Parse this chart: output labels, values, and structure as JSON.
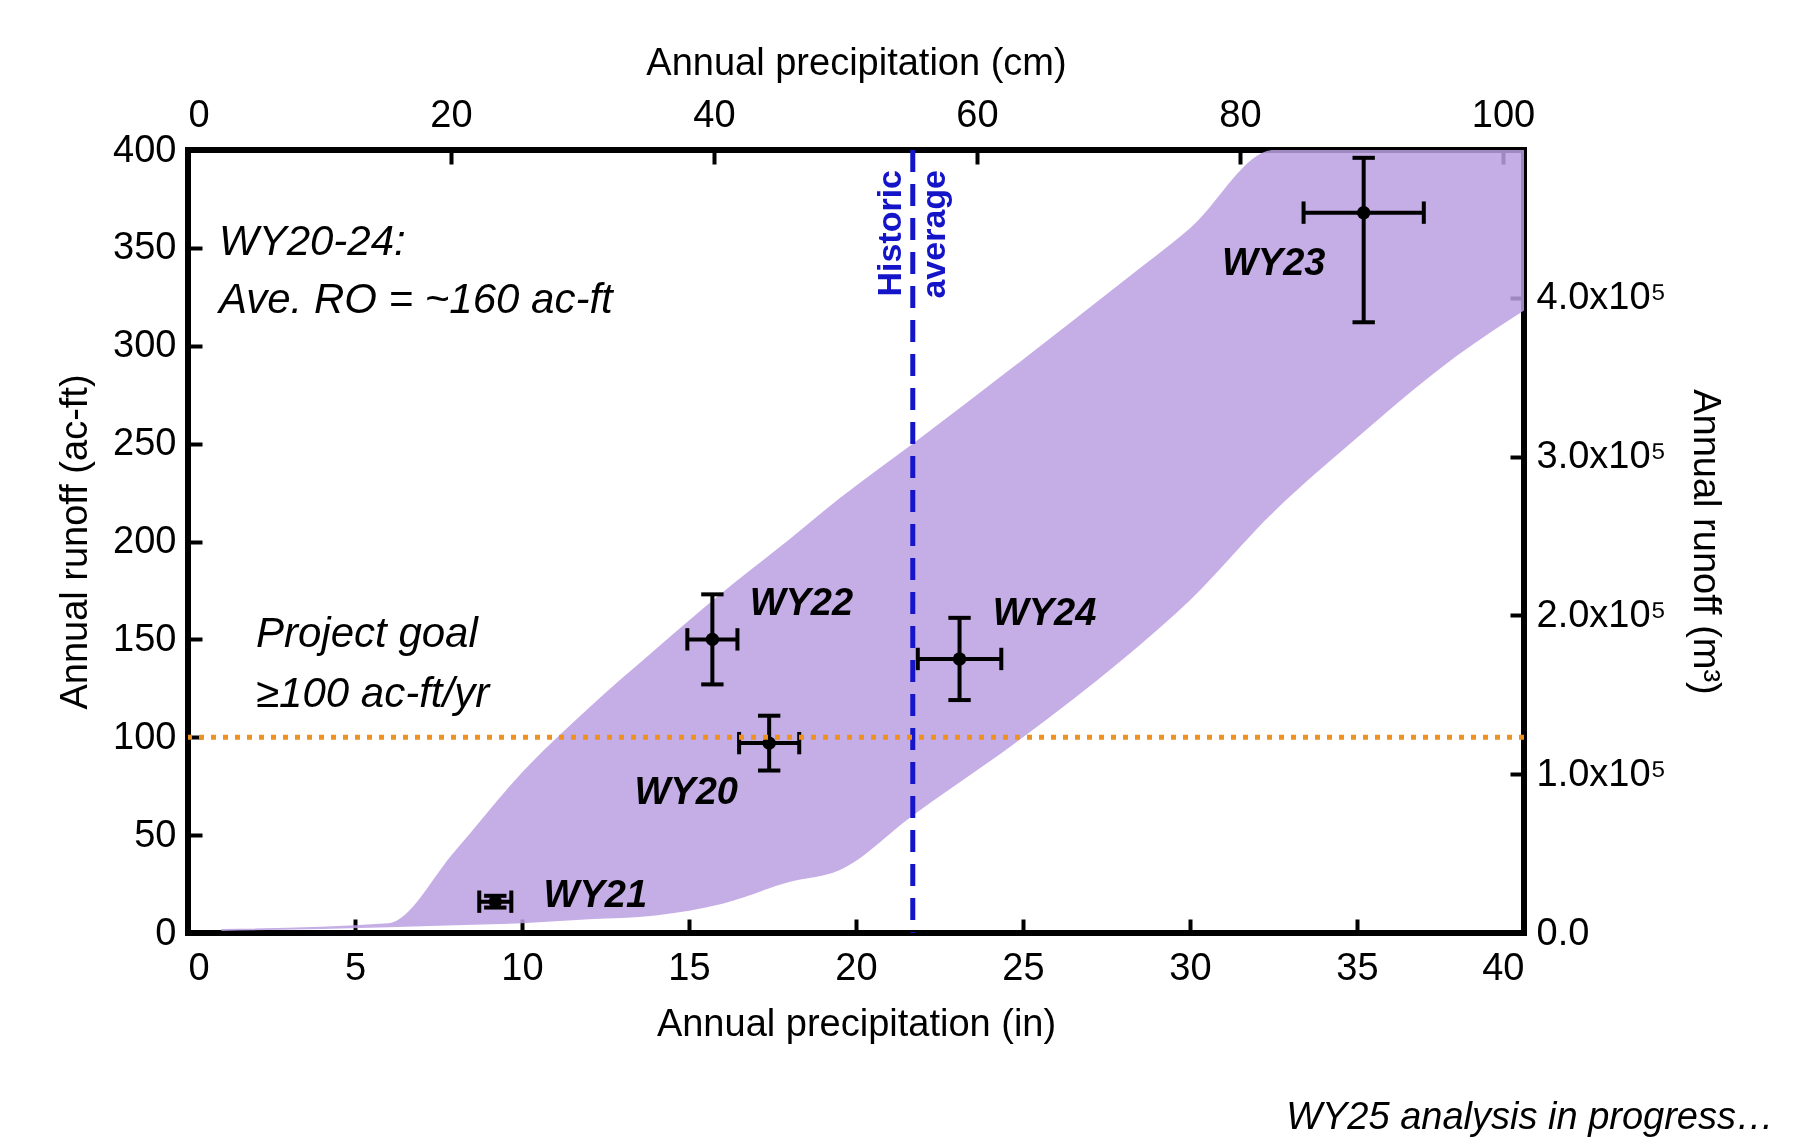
{
  "chart_data": {
    "type": "scatter",
    "xlabel": "Annual precipitation (in)",
    "ylabel": "Annual runoff (ac-ft)",
    "x2label": "Annual precipitation (cm)",
    "y2label": "Annual runoff (m³)",
    "xlim": [
      0,
      40
    ],
    "xticks": [
      0,
      5,
      10,
      15,
      20,
      25,
      30,
      35,
      40
    ],
    "ylim": [
      0,
      400
    ],
    "yticks": [
      0,
      50,
      100,
      150,
      200,
      250,
      300,
      350,
      400
    ],
    "x2lim": [
      0,
      101.6
    ],
    "x2ticks": [
      0,
      20,
      40,
      60,
      80,
      100
    ],
    "y2lim": [
      0,
      493000
    ],
    "y2ticks": [
      {
        "value": 0,
        "label": "0.0"
      },
      {
        "value": 100000,
        "label": "1.0x10⁵"
      },
      {
        "value": 200000,
        "label": "2.0x10⁵"
      },
      {
        "value": 300000,
        "label": "3.0x10⁵"
      },
      {
        "value": 400000,
        "label": "4.0x10⁵"
      }
    ],
    "grid": false,
    "marker": "circle",
    "series": [
      {
        "type": "area",
        "color": "#bb9fe0",
        "x": [
          1,
          6,
          8,
          10,
          12,
          14,
          16,
          18,
          19.5,
          21.7,
          25,
          28,
          30,
          32.5,
          35,
          38,
          40
        ],
        "values": [
          null,
          null,
          null,
          null,
          null,
          null,
          null,
          null,
          null,
          null,
          null,
          null,
          null,
          null,
          null,
          null,
          null
        ],
        "lower": [
          1,
          3,
          4,
          5,
          7,
          9,
          15,
          26,
          32,
          60,
          100,
          140,
          170,
          215,
          253,
          295,
          318
        ],
        "upper": [
          2,
          5,
          42,
          82,
          115,
          145,
          174,
          201,
          222,
          250,
          293,
          333,
          360,
          400,
          400,
          400,
          400
        ]
      },
      {
        "type": "scatter",
        "color": "#000000",
        "x": [
          9.2,
          15.7,
          17.4,
          23.1,
          35.2
        ],
        "values": [
          16,
          150,
          97,
          140,
          368
        ],
        "errors": [
          3,
          23,
          14,
          21,
          [
            312,
            396
          ]
        ],
        "xerrors": [
          0.48,
          0.75,
          0.9,
          1.25,
          1.8
        ]
      }
    ],
    "ref_lines": [
      {
        "axis": "x",
        "value": 21.7,
        "label": "Historic\naverage",
        "color": "#1414c8",
        "line_style": "dashed"
      },
      {
        "axis": "y",
        "value": 100,
        "label": "Project goal\n≥100 ac-ft/yr",
        "color": "#f0901e",
        "line_style": "dotted"
      }
    ],
    "annotations": [
      {
        "text": "WY21",
        "x": 9.2,
        "y": 16
      },
      {
        "text": "WY22",
        "x": 15.7,
        "y": 150
      },
      {
        "text": "WY20",
        "x": 17.4,
        "y": 97
      },
      {
        "text": "WY24",
        "x": 23.1,
        "y": 140
      },
      {
        "text": "WY23",
        "x": 35.2,
        "y": 368
      },
      "WY20-24:\nAve. RO = ~160 ac-ft",
      "WY25 analysis in progress…"
    ]
  }
}
